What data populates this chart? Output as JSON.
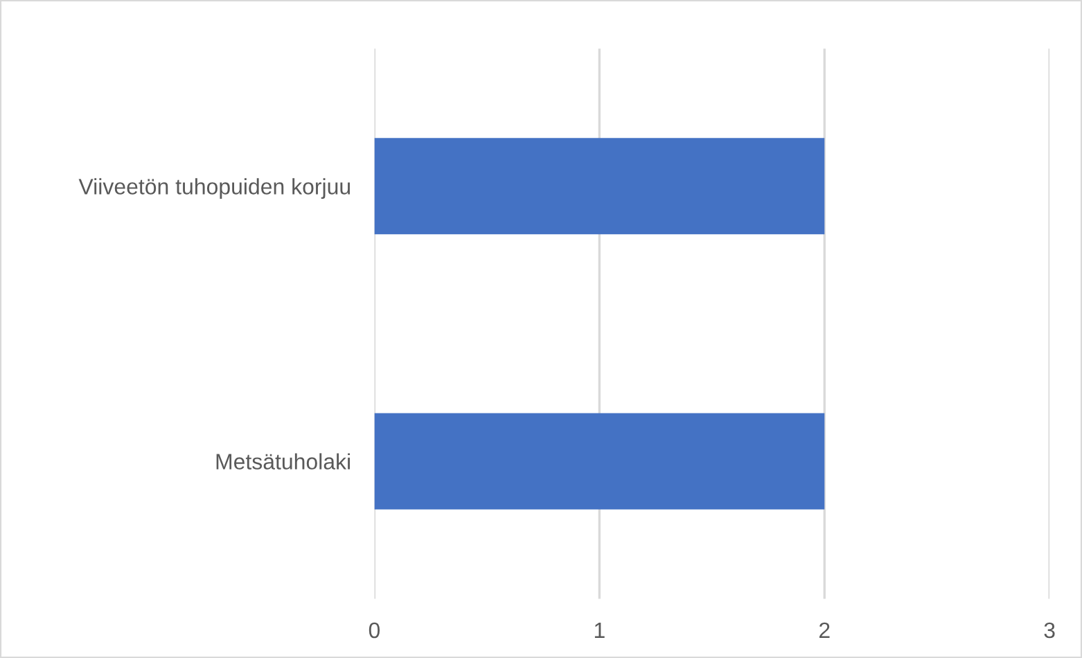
{
  "chart_data": {
    "type": "bar",
    "orientation": "horizontal",
    "categories": [
      "Viiveetön tuhopuiden korjuu",
      "Metsätuholaki"
    ],
    "values": [
      2,
      2
    ],
    "color": "#4472c4",
    "xlim": [
      0,
      3
    ],
    "xticks": [
      0,
      1,
      2,
      3
    ],
    "grid": "x"
  }
}
